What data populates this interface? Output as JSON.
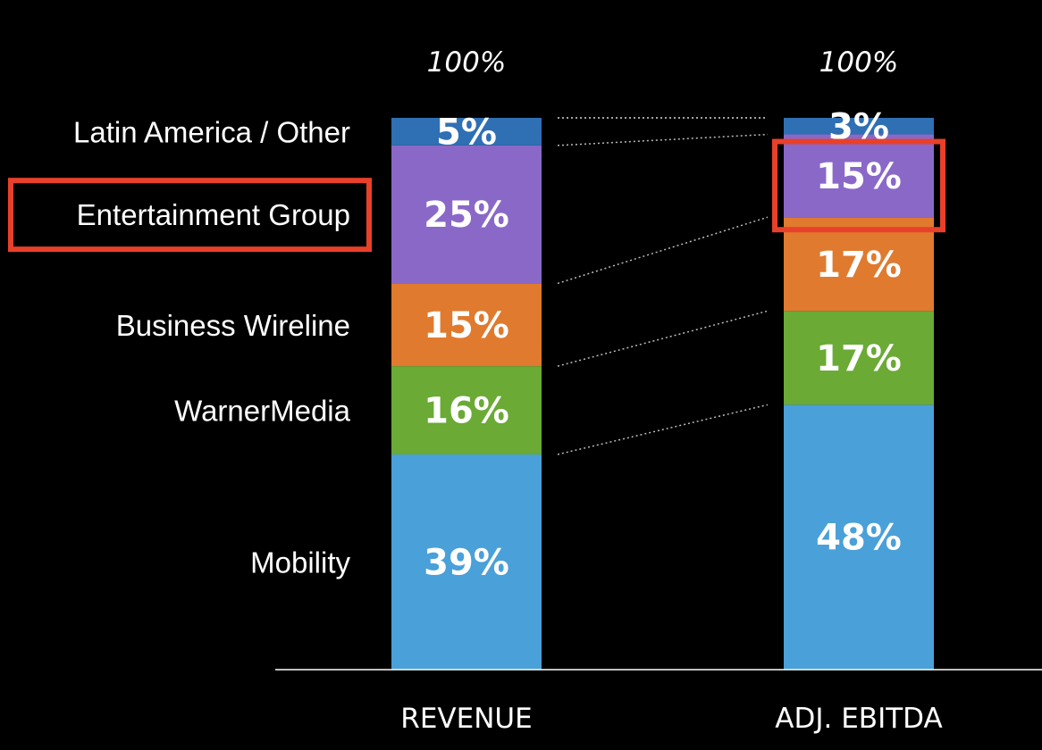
{
  "chart_data": {
    "type": "bar",
    "stacked": true,
    "normalized": true,
    "categories": [
      "REVENUE",
      "ADJ. EBITDA"
    ],
    "totals": [
      "100%",
      "100%"
    ],
    "series": [
      {
        "name": "Mobility",
        "values": [
          39,
          48
        ],
        "labels": [
          "39%",
          "48%"
        ],
        "color": "#4aa0d8"
      },
      {
        "name": "WarnerMedia",
        "values": [
          16,
          17
        ],
        "labels": [
          "16%",
          "17%"
        ],
        "color": "#6aaa35"
      },
      {
        "name": "Business Wireline",
        "values": [
          15,
          17
        ],
        "labels": [
          "15%",
          "17%"
        ],
        "color": "#e07a2e"
      },
      {
        "name": "Entertainment Group",
        "values": [
          25,
          15
        ],
        "labels": [
          "25%",
          "15%"
        ],
        "color": "#8a68c8"
      },
      {
        "name": "Latin America / Other",
        "values": [
          5,
          3
        ],
        "labels": [
          "5%",
          "3%"
        ],
        "color": "#2f6fb4"
      }
    ],
    "highlighted_series": "Entertainment Group",
    "highlight_color": "#e8402a",
    "connector_lines": "dotted",
    "ylim": [
      0,
      100
    ],
    "legend_position": "left"
  }
}
